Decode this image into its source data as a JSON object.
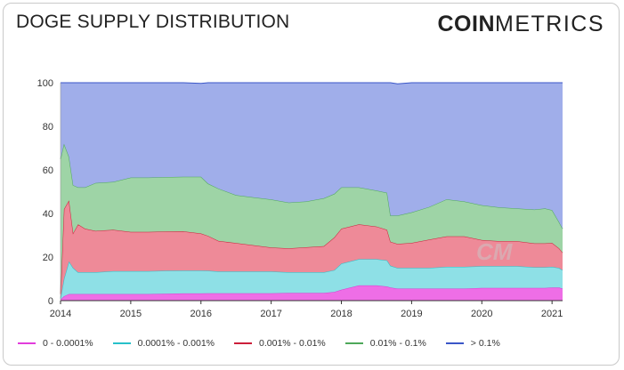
{
  "title": "DOGE SUPPLY DISTRIBUTION",
  "logo": {
    "bold": "COIN",
    "light": "METRICS"
  },
  "watermark": "CM",
  "chart_data": {
    "type": "area",
    "stacked": true,
    "title": "DOGE SUPPLY DISTRIBUTION",
    "xlabel": "",
    "ylabel": "",
    "xlim": [
      2014.0,
      2021.15
    ],
    "ylim": [
      0,
      100
    ],
    "yticks": [
      0,
      20,
      40,
      60,
      80,
      100
    ],
    "xticks": [
      "2014",
      "2015",
      "2016",
      "2017",
      "2018",
      "2019",
      "2020",
      "2021"
    ],
    "x": [
      2014.0,
      2014.05,
      2014.12,
      2014.18,
      2014.25,
      2014.35,
      2014.5,
      2014.75,
      2015.0,
      2015.25,
      2015.5,
      2015.75,
      2016.0,
      2016.1,
      2016.25,
      2016.5,
      2016.75,
      2017.0,
      2017.25,
      2017.5,
      2017.75,
      2017.9,
      2018.0,
      2018.25,
      2018.5,
      2018.65,
      2018.7,
      2018.8,
      2019.0,
      2019.25,
      2019.5,
      2019.75,
      2020.0,
      2020.25,
      2020.5,
      2020.75,
      2020.9,
      2021.0,
      2021.1,
      2021.15
    ],
    "series": [
      {
        "name": "0 - 0.0001%",
        "color": "#ee6ee6",
        "values": [
          0.5,
          2,
          3,
          3,
          3,
          3,
          3,
          3,
          3,
          3,
          3.2,
          3.3,
          3.3,
          3.4,
          3.4,
          3.4,
          3.4,
          3.4,
          3.5,
          3.5,
          3.5,
          4,
          5,
          7,
          7,
          6.5,
          6,
          5.5,
          5.5,
          5.5,
          5.5,
          5.5,
          5.8,
          5.8,
          5.8,
          5.8,
          5.8,
          6,
          6,
          5.5
        ]
      },
      {
        "name": "0.0001% - 0.001%",
        "color": "#8ee0e6",
        "values": [
          0.5,
          8,
          15,
          12,
          10,
          10,
          10,
          10.5,
          10.5,
          10.5,
          10.5,
          10.5,
          10.5,
          10.3,
          10,
          10,
          10,
          10,
          9.5,
          9.5,
          9.5,
          10,
          12,
          12,
          12,
          12,
          10,
          9.5,
          9.5,
          9.5,
          10,
          10,
          10,
          10,
          10,
          9.5,
          9.5,
          9.5,
          9,
          8.5
        ]
      },
      {
        "name": "0.001% - 0.01%",
        "color": "#ee8a98",
        "values": [
          2,
          32,
          28,
          16,
          22,
          20,
          19,
          19,
          18,
          18,
          18,
          18,
          17,
          16,
          14,
          13,
          12,
          11,
          11,
          11.5,
          12,
          15,
          16,
          16,
          15,
          14,
          11,
          11,
          11.5,
          13,
          14,
          14,
          12,
          11.5,
          11.5,
          11,
          11,
          11,
          9,
          8
        ]
      },
      {
        "name": "0.01% - 0.1%",
        "color": "#9ed4a6",
        "values": [
          62,
          30,
          20,
          22,
          17,
          19,
          22,
          22,
          25,
          25,
          25,
          25,
          26,
          24,
          24,
          22,
          22,
          22,
          21,
          21,
          22,
          20,
          19,
          17,
          16.5,
          17,
          12,
          13,
          14,
          15,
          17,
          16,
          16,
          15.5,
          15,
          15.5,
          16,
          15,
          12,
          11
        ]
      },
      {
        "name": "> 0.1%",
        "color": "#a0aeea",
        "values": [
          35,
          28,
          34,
          47,
          48,
          48,
          46,
          45.5,
          43.5,
          43.5,
          43.3,
          43.2,
          42.9,
          46.3,
          48.6,
          51.6,
          52.6,
          53.6,
          55,
          54.5,
          53,
          51,
          48,
          48,
          49.5,
          50.5,
          61,
          60.5,
          59.5,
          57,
          53.5,
          54.5,
          56.2,
          57.2,
          57.7,
          58.2,
          57.7,
          58.5,
          64,
          67
        ]
      }
    ],
    "legend_position": "bottom-left"
  }
}
